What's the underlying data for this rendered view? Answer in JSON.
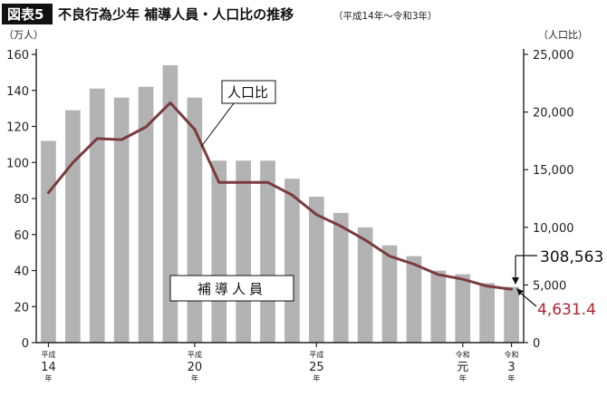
{
  "header": {
    "badge": "図表5",
    "title": "不良行為少年 補導人員・人口比の推移",
    "subtitle": "（平成14年～令和3年）"
  },
  "axes": {
    "left_unit": "（万人）",
    "right_unit": "（人口比）"
  },
  "labels": {
    "line_callout": "人口比",
    "bar_box": "補導人員",
    "end_bar_value": "308,563",
    "end_line_value": "4,631.4"
  },
  "colors": {
    "bar": "#b3b3b3",
    "line": "#7a3b3e",
    "line_label": "#b0222e",
    "axis": "#222222",
    "badge_bg": "#111111"
  },
  "chart_data": {
    "type": "bar",
    "x": [
      "平成14年",
      "平成15年",
      "平成16年",
      "平成17年",
      "平成18年",
      "平成19年",
      "平成20年",
      "平成21年",
      "平成22年",
      "平成23年",
      "平成24年",
      "平成25年",
      "平成26年",
      "平成27年",
      "平成28年",
      "平成29年",
      "平成30年",
      "令和元年",
      "令和2年",
      "令和3年"
    ],
    "series": [
      {
        "name": "補導人員",
        "type": "bar",
        "axis": "left",
        "values": [
          112,
          129,
          141,
          136,
          142,
          154,
          136,
          101,
          101,
          101,
          91,
          81,
          72,
          64,
          54,
          48,
          40,
          38,
          33,
          30.9
        ]
      },
      {
        "name": "人口比",
        "type": "line",
        "axis": "right",
        "values": [
          13000,
          15600,
          17700,
          17600,
          18700,
          20800,
          18500,
          13900,
          13900,
          13900,
          12800,
          11100,
          10100,
          8900,
          7500,
          6800,
          5900,
          5500,
          4900,
          4631.4
        ]
      }
    ],
    "xticks": [
      {
        "index": 0,
        "top": "平成",
        "mid": "14",
        "bottom": "年"
      },
      {
        "index": 6,
        "top": "平成",
        "mid": "20",
        "bottom": "年"
      },
      {
        "index": 11,
        "top": "平成",
        "mid": "25",
        "bottom": "年"
      },
      {
        "index": 17,
        "top": "令和",
        "mid": "元",
        "bottom": "年"
      },
      {
        "index": 19,
        "top": "令和",
        "mid": "3",
        "bottom": "年"
      }
    ],
    "left_axis": {
      "min": 0,
      "max": 160,
      "ticks": [
        0,
        20,
        40,
        60,
        80,
        100,
        120,
        140,
        160
      ],
      "tick_labels": [
        "0",
        "20",
        "40",
        "60",
        "80",
        "100",
        "120",
        "140",
        "160"
      ]
    },
    "right_axis": {
      "min": 0,
      "max": 25000,
      "ticks": [
        0,
        5000,
        10000,
        15000,
        20000,
        25000
      ],
      "tick_labels": [
        "0",
        "5,000",
        "10,000",
        "15,000",
        "20,000",
        "25,000"
      ]
    },
    "grid": false,
    "legend": "none"
  }
}
